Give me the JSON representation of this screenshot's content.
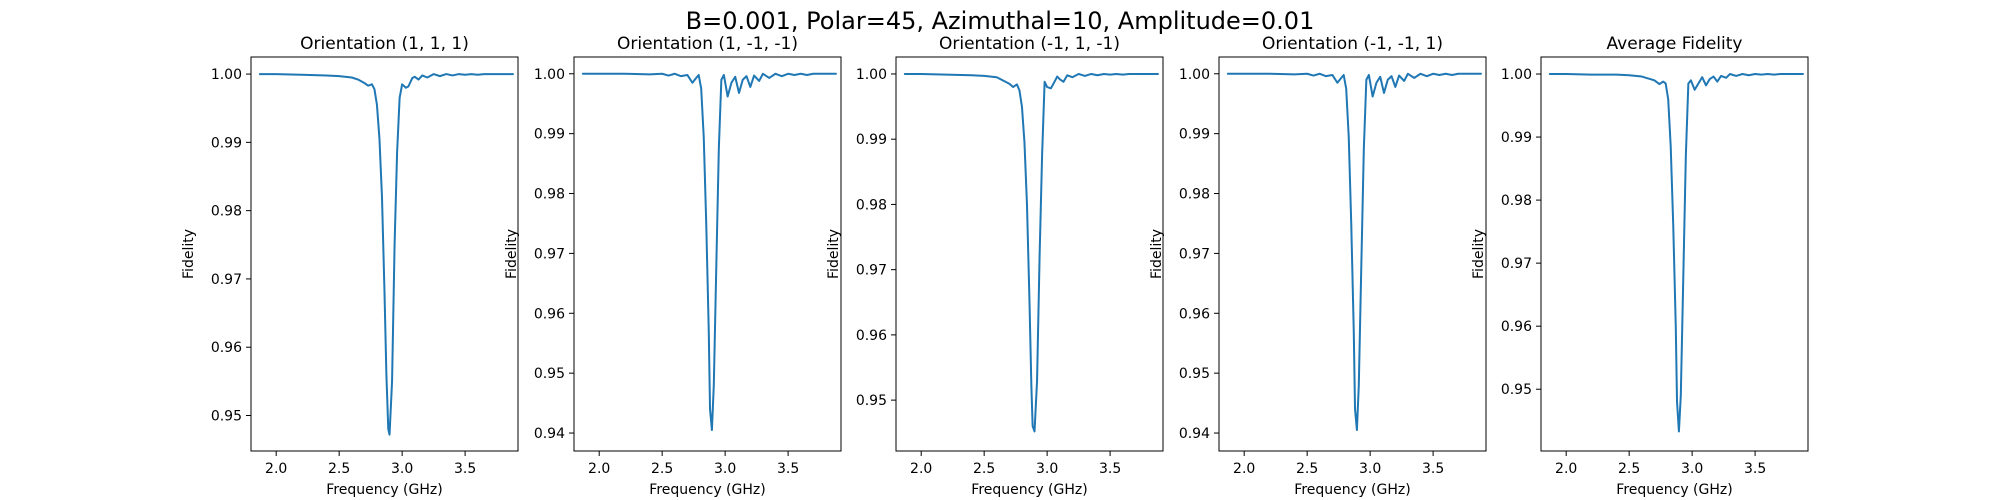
{
  "figure": {
    "suptitle": "B=0.001, Polar=45, Azimuthal=10, Amplitude=0.01",
    "line_color": "#1f77b4"
  },
  "chart_data": [
    {
      "type": "line",
      "title": "Orientation (1, 1, 1)",
      "xlabel": "Frequency (GHz)",
      "ylabel": "Fidelity",
      "xlim": [
        1.8,
        3.92
      ],
      "ylim": [
        0.9448,
        1.0025
      ],
      "xticks": [
        2.0,
        2.5,
        3.0,
        3.5
      ],
      "xticklabels": [
        "2.0",
        "2.5",
        "3.0",
        "3.5"
      ],
      "yticks": [
        0.95,
        0.96,
        0.97,
        0.98,
        0.99,
        1.0
      ],
      "yticklabels": [
        "0.95",
        "0.96",
        "0.97",
        "0.98",
        "0.99",
        "1.00"
      ],
      "series": [
        {
          "x": [
            1.87,
            2.0,
            2.2,
            2.4,
            2.5,
            2.6,
            2.65,
            2.7,
            2.73,
            2.76,
            2.78,
            2.8,
            2.82,
            2.84,
            2.86,
            2.875,
            2.89,
            2.9,
            2.92,
            2.94,
            2.96,
            2.98,
            3.0,
            3.03,
            3.05,
            3.08,
            3.1,
            3.13,
            3.16,
            3.2,
            3.25,
            3.3,
            3.35,
            3.4,
            3.45,
            3.5,
            3.55,
            3.6,
            3.65,
            3.7,
            3.75,
            3.8,
            3.85,
            3.88
          ],
          "y": [
            1.0,
            1.0,
            0.9999,
            0.9998,
            0.9997,
            0.9995,
            0.9992,
            0.9987,
            0.9983,
            0.9985,
            0.9978,
            0.9955,
            0.9905,
            0.982,
            0.968,
            0.956,
            0.948,
            0.9472,
            0.955,
            0.975,
            0.9885,
            0.9965,
            0.9985,
            0.998,
            0.9982,
            0.9994,
            0.9996,
            0.9992,
            0.9998,
            0.9995,
            1.0,
            0.9997,
            1.0,
            0.9998,
            1.0,
            0.9999,
            1.0,
            0.9999,
            1.0,
            1.0,
            1.0,
            1.0,
            1.0,
            1.0
          ]
        }
      ]
    },
    {
      "type": "line",
      "title": "Orientation (1, -1, -1)",
      "xlabel": "Frequency (GHz)",
      "ylabel": "Fidelity",
      "xlim": [
        1.8,
        3.92
      ],
      "ylim": [
        0.937,
        1.0028
      ],
      "xticks": [
        2.0,
        2.5,
        3.0,
        3.5
      ],
      "xticklabels": [
        "2.0",
        "2.5",
        "3.0",
        "3.5"
      ],
      "yticks": [
        0.94,
        0.95,
        0.96,
        0.97,
        0.98,
        0.99,
        1.0
      ],
      "yticklabels": [
        "0.94",
        "0.95",
        "0.96",
        "0.97",
        "0.98",
        "0.99",
        "1.00"
      ],
      "series": [
        {
          "x": [
            1.87,
            2.0,
            2.2,
            2.4,
            2.5,
            2.55,
            2.6,
            2.65,
            2.7,
            2.74,
            2.77,
            2.79,
            2.81,
            2.83,
            2.85,
            2.87,
            2.88,
            2.895,
            2.91,
            2.93,
            2.95,
            2.97,
            2.99,
            3.02,
            3.05,
            3.08,
            3.11,
            3.14,
            3.17,
            3.2,
            3.23,
            3.27,
            3.3,
            3.35,
            3.4,
            3.45,
            3.5,
            3.55,
            3.6,
            3.65,
            3.7,
            3.75,
            3.8,
            3.85,
            3.88
          ],
          "y": [
            1.0,
            1.0,
            1.0,
            0.9999,
            1.0,
            0.9997,
            1.0,
            0.9996,
            0.9998,
            0.9985,
            0.9993,
            0.9998,
            0.9975,
            0.9895,
            0.975,
            0.957,
            0.944,
            0.9405,
            0.948,
            0.968,
            0.9875,
            0.999,
            0.9998,
            0.9962,
            0.9985,
            0.9995,
            0.9968,
            0.999,
            0.9996,
            0.9978,
            0.9997,
            0.9988,
            1.0,
            0.9993,
            1.0,
            0.9996,
            1.0,
            0.9998,
            1.0,
            0.9998,
            1.0,
            1.0,
            1.0,
            1.0,
            1.0
          ]
        }
      ]
    },
    {
      "type": "line",
      "title": "Orientation (-1, 1, -1)",
      "xlabel": "Frequency (GHz)",
      "ylabel": "Fidelity",
      "xlim": [
        1.8,
        3.92
      ],
      "ylim": [
        0.9422,
        1.0026
      ],
      "xticks": [
        2.0,
        2.5,
        3.0,
        3.5
      ],
      "xticklabels": [
        "2.0",
        "2.5",
        "3.0",
        "3.5"
      ],
      "yticks": [
        0.95,
        0.96,
        0.97,
        0.98,
        0.99,
        1.0
      ],
      "yticklabels": [
        "0.95",
        "0.96",
        "0.97",
        "0.98",
        "0.99",
        "1.00"
      ],
      "series": [
        {
          "x": [
            1.87,
            2.0,
            2.2,
            2.4,
            2.5,
            2.6,
            2.65,
            2.7,
            2.73,
            2.76,
            2.78,
            2.8,
            2.82,
            2.84,
            2.86,
            2.875,
            2.885,
            2.9,
            2.92,
            2.94,
            2.96,
            2.98,
            3.0,
            3.03,
            3.05,
            3.08,
            3.1,
            3.13,
            3.16,
            3.2,
            3.25,
            3.3,
            3.35,
            3.4,
            3.45,
            3.5,
            3.55,
            3.6,
            3.65,
            3.7,
            3.75,
            3.8,
            3.85,
            3.88
          ],
          "y": [
            1.0,
            1.0,
            0.9999,
            0.9998,
            0.9997,
            0.9995,
            0.999,
            0.9985,
            0.998,
            0.9984,
            0.9975,
            0.995,
            0.9895,
            0.98,
            0.965,
            0.952,
            0.946,
            0.9452,
            0.953,
            0.972,
            0.9875,
            0.9988,
            0.998,
            0.9978,
            0.9985,
            0.9996,
            0.9992,
            0.9988,
            0.9998,
            0.9995,
            1.0,
            0.9997,
            1.0,
            0.9998,
            1.0,
            0.9999,
            1.0,
            0.9999,
            1.0,
            1.0,
            1.0,
            1.0,
            1.0,
            1.0
          ]
        }
      ]
    },
    {
      "type": "line",
      "title": "Orientation (-1, -1, 1)",
      "xlabel": "Frequency (GHz)",
      "ylabel": "Fidelity",
      "xlim": [
        1.8,
        3.92
      ],
      "ylim": [
        0.937,
        1.0028
      ],
      "xticks": [
        2.0,
        2.5,
        3.0,
        3.5
      ],
      "xticklabels": [
        "2.0",
        "2.5",
        "3.0",
        "3.5"
      ],
      "yticks": [
        0.94,
        0.95,
        0.96,
        0.97,
        0.98,
        0.99,
        1.0
      ],
      "yticklabels": [
        "0.94",
        "0.95",
        "0.96",
        "0.97",
        "0.98",
        "0.99",
        "1.00"
      ],
      "series": [
        {
          "x": [
            1.87,
            2.0,
            2.2,
            2.4,
            2.5,
            2.55,
            2.6,
            2.65,
            2.7,
            2.74,
            2.77,
            2.79,
            2.81,
            2.83,
            2.85,
            2.87,
            2.88,
            2.895,
            2.91,
            2.93,
            2.95,
            2.97,
            2.99,
            3.02,
            3.05,
            3.08,
            3.11,
            3.14,
            3.17,
            3.2,
            3.23,
            3.27,
            3.3,
            3.35,
            3.4,
            3.45,
            3.5,
            3.55,
            3.6,
            3.65,
            3.7,
            3.75,
            3.8,
            3.85,
            3.88
          ],
          "y": [
            1.0,
            1.0,
            1.0,
            0.9999,
            1.0,
            0.9997,
            1.0,
            0.9996,
            0.9998,
            0.9985,
            0.9993,
            0.9998,
            0.9975,
            0.9895,
            0.975,
            0.957,
            0.944,
            0.9405,
            0.948,
            0.968,
            0.9875,
            0.999,
            0.9998,
            0.9962,
            0.9985,
            0.9995,
            0.9968,
            0.999,
            0.9996,
            0.9978,
            0.9997,
            0.9988,
            1.0,
            0.9993,
            1.0,
            0.9996,
            1.0,
            0.9998,
            1.0,
            0.9998,
            1.0,
            1.0,
            1.0,
            1.0,
            1.0
          ]
        }
      ]
    },
    {
      "type": "line",
      "title": "Average Fidelity",
      "xlabel": "Frequency (GHz)",
      "ylabel": "Fidelity",
      "xlim": [
        1.8,
        3.92
      ],
      "ylim": [
        0.9402,
        1.0027
      ],
      "xticks": [
        2.0,
        2.5,
        3.0,
        3.5
      ],
      "xticklabels": [
        "2.0",
        "2.5",
        "3.0",
        "3.5"
      ],
      "yticks": [
        0.95,
        0.96,
        0.97,
        0.98,
        0.99,
        1.0
      ],
      "yticklabels": [
        "0.95",
        "0.96",
        "0.97",
        "0.98",
        "0.99",
        "1.00"
      ],
      "series": [
        {
          "x": [
            1.87,
            2.0,
            2.2,
            2.4,
            2.5,
            2.6,
            2.65,
            2.7,
            2.74,
            2.77,
            2.79,
            2.81,
            2.83,
            2.85,
            2.87,
            2.88,
            2.895,
            2.91,
            2.93,
            2.95,
            2.97,
            2.99,
            3.02,
            3.05,
            3.08,
            3.11,
            3.14,
            3.17,
            3.2,
            3.23,
            3.27,
            3.3,
            3.35,
            3.4,
            3.45,
            3.5,
            3.55,
            3.6,
            3.65,
            3.7,
            3.75,
            3.8,
            3.85,
            3.88
          ],
          "y": [
            1.0,
            1.0,
            0.9999,
            0.9999,
            0.9998,
            0.9996,
            0.9993,
            0.999,
            0.9984,
            0.9988,
            0.9985,
            0.996,
            0.9885,
            0.976,
            0.96,
            0.948,
            0.9433,
            0.949,
            0.968,
            0.987,
            0.9985,
            0.999,
            0.9975,
            0.9985,
            0.9995,
            0.9982,
            0.9992,
            0.9996,
            0.9988,
            0.9997,
            0.9994,
            1.0,
            0.9997,
            1.0,
            0.9998,
            1.0,
            0.9999,
            1.0,
            0.9999,
            1.0,
            1.0,
            1.0,
            1.0,
            1.0
          ]
        }
      ]
    }
  ]
}
